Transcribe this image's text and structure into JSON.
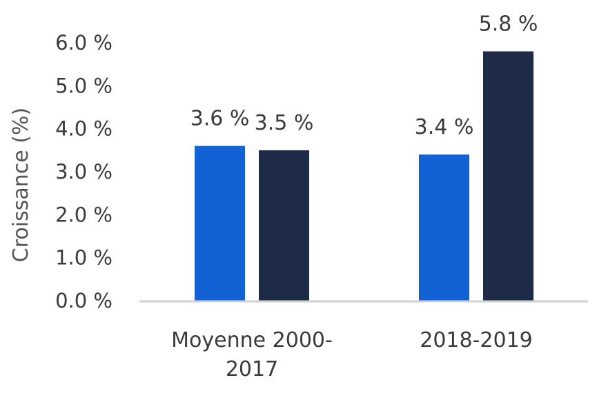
{
  "chart_data": {
    "type": "bar",
    "categories": [
      [
        "Moyenne 2000-",
        "2017"
      ],
      [
        "2018-2019"
      ]
    ],
    "series": [
      {
        "values": [
          3.6,
          3.4
        ],
        "labels": [
          "3.6 %",
          "3.4 %"
        ],
        "color": "#1262D6"
      },
      {
        "values": [
          3.5,
          5.8
        ],
        "labels": [
          "3.5 %",
          "5.8 %"
        ],
        "color": "#1D2B48"
      }
    ],
    "ylabel": "Croissance (%)",
    "ylim": [
      0,
      6
    ],
    "yticks": [
      {
        "value": 0,
        "label": "0.0 %"
      },
      {
        "value": 1,
        "label": "1.0 %"
      },
      {
        "value": 2,
        "label": "2.0 %"
      },
      {
        "value": 3,
        "label": "3.0 %"
      },
      {
        "value": 4,
        "label": "4.0 %"
      },
      {
        "value": 5,
        "label": "5.0 %"
      },
      {
        "value": 6,
        "label": "6.0 %"
      }
    ],
    "grid": false,
    "legend": "none",
    "axis_color": "#D0D0D0"
  }
}
